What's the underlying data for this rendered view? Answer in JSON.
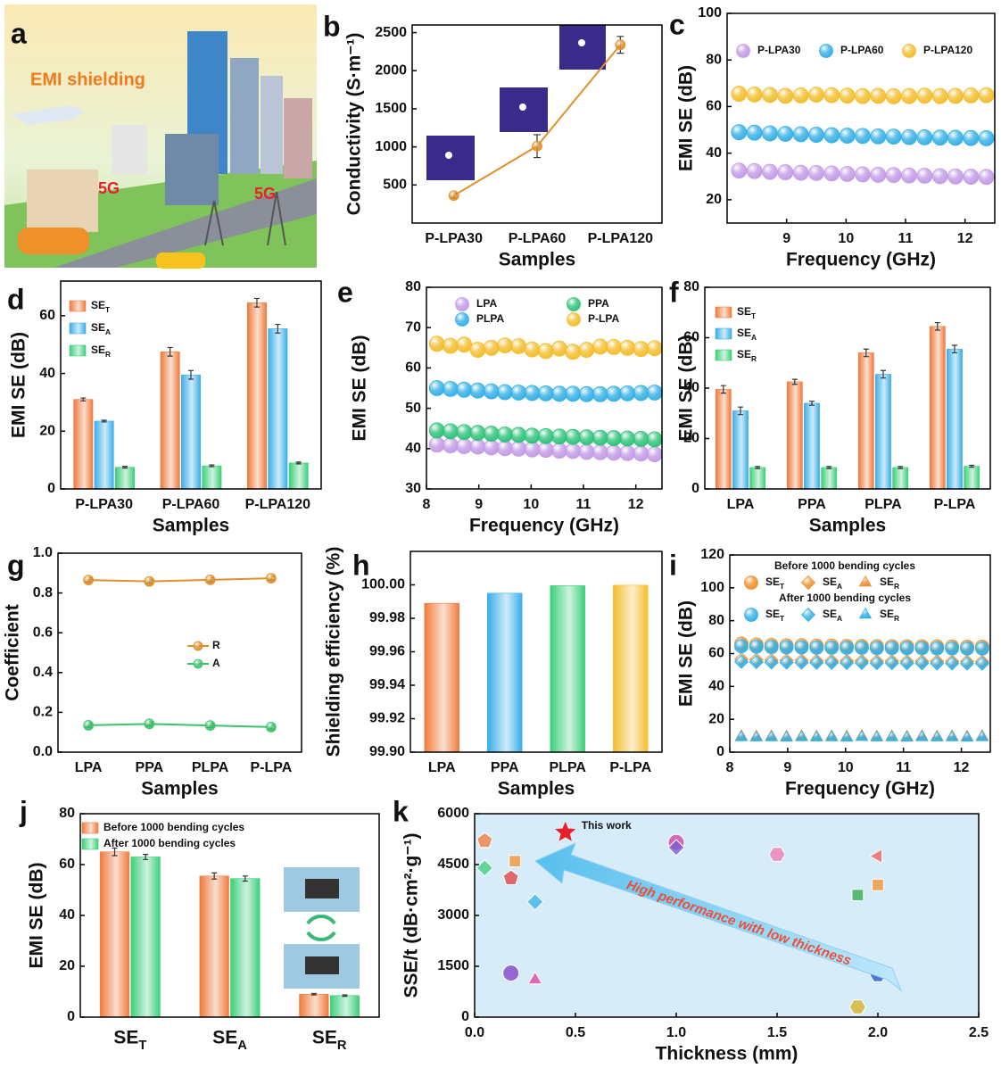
{
  "illustration": {
    "panel": "a",
    "texts": [
      "EMI shielding",
      "5G",
      "5G"
    ]
  },
  "chart_data": [
    {
      "panel": "b",
      "type": "line",
      "xlabel": "Samples",
      "ylabel": "Conductivity (S·m⁻¹)",
      "categories": [
        "P-LPA30",
        "P-LPA60",
        "P-LPA120"
      ],
      "series": [
        {
          "color": "#e0902a",
          "values": [
            360,
            1010,
            2340
          ],
          "errors": [
            30,
            150,
            110
          ]
        }
      ],
      "ylim": [
        0,
        2600
      ],
      "yticks": [
        500,
        1000,
        1500,
        2000,
        2500
      ]
    },
    {
      "panel": "c",
      "type": "scatter",
      "xlabel": "Frequency (GHz)",
      "ylabel": "EMI SE (dB)",
      "x": [
        8.2,
        8.46,
        8.72,
        8.98,
        9.24,
        9.5,
        9.76,
        10.02,
        10.28,
        10.54,
        10.8,
        11.06,
        11.32,
        11.58,
        11.84,
        12.1,
        12.36
      ],
      "series": [
        {
          "name": "P-LPA30",
          "color": "#c39be6",
          "values": [
            32.5,
            32.3,
            32,
            31.8,
            31.6,
            31.5,
            31.3,
            31.1,
            30.9,
            30.7,
            30.6,
            30.4,
            30.3,
            30.1,
            30,
            29.9,
            29.8
          ]
        },
        {
          "name": "P-LPA60",
          "color": "#35b0e6",
          "values": [
            49,
            48.8,
            48.5,
            48.3,
            48.1,
            47.9,
            47.7,
            47.5,
            47.4,
            47.2,
            47.1,
            46.9,
            46.8,
            46.7,
            46.6,
            46.5,
            46.4
          ]
        },
        {
          "name": "P-LPA120",
          "color": "#f3bd2c",
          "values": [
            65.5,
            65.2,
            65,
            64.6,
            64.8,
            65.1,
            64.9,
            64.7,
            64.5,
            64.6,
            64.4,
            64.5,
            64.7,
            64.5,
            64.6,
            64.8,
            64.9
          ]
        }
      ],
      "xlim": [
        8,
        12.5
      ],
      "xticks": [
        9,
        10,
        11,
        12
      ],
      "ylim": [
        10,
        100
      ],
      "yticks": [
        20,
        40,
        60,
        80,
        100
      ]
    },
    {
      "panel": "d",
      "type": "bar",
      "xlabel": "Samples",
      "ylabel": "EMI SE (dB)",
      "categories": [
        "P-LPA30",
        "P-LPA60",
        "P-LPA120"
      ],
      "series": [
        {
          "name": "SET",
          "color": "#f07a3c",
          "values": [
            31,
            47.5,
            64.5
          ],
          "errors": [
            0.5,
            1.5,
            1.5
          ]
        },
        {
          "name": "SEA",
          "color": "#3aaee8",
          "values": [
            23.5,
            39.5,
            55.5
          ],
          "errors": [
            0.3,
            1.5,
            1.5
          ]
        },
        {
          "name": "SER",
          "color": "#3ccf7a",
          "values": [
            7.5,
            8,
            9
          ],
          "errors": [
            0.3,
            0.3,
            0.3
          ]
        }
      ],
      "ylim": [
        0,
        72
      ],
      "yticks": [
        0,
        20,
        40,
        60
      ]
    },
    {
      "panel": "e",
      "type": "scatter",
      "xlabel": "Frequency (GHz)",
      "ylabel": "EMI SE (dB)",
      "x": [
        8.2,
        8.46,
        8.72,
        8.98,
        9.24,
        9.5,
        9.76,
        10.02,
        10.28,
        10.54,
        10.8,
        11.06,
        11.32,
        11.58,
        11.84,
        12.1,
        12.36
      ],
      "series": [
        {
          "name": "LPA",
          "color": "#c39be6",
          "values": [
            41,
            40.8,
            40.6,
            40.5,
            40.3,
            40.1,
            40,
            39.8,
            39.7,
            39.5,
            39.4,
            39.2,
            39.1,
            39,
            38.9,
            38.8,
            38.6
          ]
        },
        {
          "name": "PPA",
          "color": "#2fc27a",
          "values": [
            44.5,
            44.3,
            44.1,
            43.9,
            43.7,
            43.5,
            43.4,
            43.2,
            43.1,
            43,
            42.9,
            42.8,
            42.7,
            42.6,
            42.5,
            42.4,
            42.3
          ]
        },
        {
          "name": "PLPA",
          "color": "#35b0e6",
          "values": [
            55,
            54.8,
            54.6,
            54.4,
            54.2,
            54,
            53.9,
            53.8,
            53.7,
            53.6,
            53.6,
            53.5,
            53.5,
            53.6,
            53.7,
            53.8,
            53.9
          ]
        },
        {
          "name": "P-LPA",
          "color": "#f3bd2c",
          "values": [
            66,
            65.5,
            65.8,
            64.5,
            65,
            65.6,
            65.4,
            64.6,
            64.2,
            64.8,
            64,
            64.5,
            65.3,
            65.2,
            65,
            64.7,
            64.9
          ]
        }
      ],
      "xlim": [
        8,
        12.5
      ],
      "xticks": [
        8,
        9,
        10,
        11,
        12
      ],
      "ylim": [
        30,
        80
      ],
      "yticks": [
        30,
        40,
        50,
        60,
        70,
        80
      ]
    },
    {
      "panel": "f",
      "type": "bar",
      "xlabel": "Samples",
      "ylabel": "EMI SE (dB)",
      "categories": [
        "LPA",
        "PPA",
        "PLPA",
        "P-LPA"
      ],
      "series": [
        {
          "name": "SET",
          "color": "#f07a3c",
          "values": [
            39.5,
            42.5,
            54,
            64.5
          ],
          "errors": [
            1.5,
            1,
            1.5,
            1.5
          ]
        },
        {
          "name": "SEA",
          "color": "#3aaee8",
          "values": [
            31,
            34,
            45.5,
            55.5
          ],
          "errors": [
            1.5,
            0.8,
            1.5,
            1.5
          ]
        },
        {
          "name": "SER",
          "color": "#3ccf7a",
          "values": [
            8.5,
            8.5,
            8.5,
            9
          ],
          "errors": [
            0.4,
            0.4,
            0.4,
            0.4
          ]
        }
      ],
      "ylim": [
        0,
        80
      ],
      "yticks": [
        0,
        20,
        40,
        60,
        80
      ]
    },
    {
      "panel": "g",
      "type": "line",
      "xlabel": "Samples",
      "ylabel": "Coefficient",
      "categories": [
        "LPA",
        "PPA",
        "PLPA",
        "P-LPA"
      ],
      "series": [
        {
          "name": "R",
          "color": "#e0902a",
          "values": [
            0.865,
            0.858,
            0.866,
            0.874
          ],
          "errors": [
            0.01,
            0.01,
            0.01,
            0.01
          ]
        },
        {
          "name": "A",
          "color": "#3cc36a",
          "values": [
            0.135,
            0.142,
            0.134,
            0.126
          ],
          "errors": [
            0.01,
            0.01,
            0.01,
            0.01
          ]
        }
      ],
      "ylim": [
        0,
        1
      ],
      "yticks": [
        {
          "value": 0,
          "label": "0.0"
        },
        0.2,
        0.4,
        0.6,
        0.8,
        {
          "value": 1,
          "label": "1.0"
        }
      ]
    },
    {
      "panel": "h",
      "type": "bar",
      "xlabel": "Samples",
      "ylabel": "Shielding efficiency (%)",
      "categories": [
        "LPA",
        "PPA",
        "PLPA",
        "P-LPA"
      ],
      "values": [
        99.989,
        99.995,
        99.9995,
        99.9998
      ],
      "colors": [
        "#f07a3c",
        "#3aaee8",
        "#3ccf7a",
        "#f3bd2c"
      ],
      "ylim": [
        99.9,
        100.02
      ],
      "yticks": [
        {
          "value": 99.9,
          "label": "99.90"
        },
        99.92,
        99.94,
        99.96,
        99.98,
        {
          "value": 100,
          "label": "100.00"
        }
      ]
    },
    {
      "panel": "i",
      "type": "scatter",
      "xlabel": "Frequency (GHz)",
      "ylabel": "EMI SE (dB)",
      "legend_titles": [
        "Before 1000 bending cycles",
        "After 1000 bending cycles"
      ],
      "x": [
        8.2,
        8.46,
        8.72,
        8.98,
        9.24,
        9.5,
        9.76,
        10.02,
        10.28,
        10.54,
        10.8,
        11.06,
        11.32,
        11.58,
        11.84,
        12.1,
        12.36
      ],
      "series": [
        {
          "name": "SET",
          "marker": "circle",
          "color": "#f0902a",
          "values": [
            66,
            65.5,
            65.2,
            65,
            65,
            64.8,
            64.8,
            64.6,
            64.6,
            64.5,
            64.5,
            64.4,
            64.4,
            64.3,
            64.3,
            64.2,
            64.2
          ]
        },
        {
          "name": "SEA",
          "marker": "diamond",
          "color": "#f0902a",
          "values": [
            56.5,
            56.2,
            56,
            55.8,
            55.8,
            55.6,
            55.6,
            55.5,
            55.5,
            55.4,
            55.4,
            55.3,
            55.3,
            55.2,
            55.2,
            55.1,
            55.1
          ]
        },
        {
          "name": "SER",
          "marker": "triangle",
          "color": "#f0902a",
          "values": [
            9.5,
            9.3,
            9.4,
            9.2,
            9.5,
            9.3,
            9.4,
            9.2,
            9.6,
            9.3,
            9.4,
            9.2,
            9.5,
            9.3,
            9.4,
            9.2,
            9.5
          ]
        },
        {
          "name": "SET",
          "marker": "circle",
          "color": "#35b0e6",
          "values": [
            64.5,
            64.2,
            64,
            63.8,
            63.8,
            63.6,
            63.6,
            63.5,
            63.5,
            63.4,
            63.4,
            63.3,
            63.3,
            63.2,
            63.2,
            63.1,
            63.1
          ]
        },
        {
          "name": "SEA",
          "marker": "diamond",
          "color": "#35b0e6",
          "values": [
            55,
            54.8,
            54.6,
            54.5,
            54.5,
            54.4,
            54.4,
            54.3,
            54.3,
            54.2,
            54.2,
            54.1,
            54.1,
            54,
            54,
            53.9,
            53.9
          ]
        },
        {
          "name": "SER",
          "marker": "triangle",
          "color": "#35b0e6",
          "values": [
            9,
            8.8,
            8.9,
            8.7,
            9,
            8.8,
            8.9,
            8.7,
            9.1,
            8.8,
            8.9,
            8.7,
            9,
            8.8,
            8.9,
            8.7,
            9
          ]
        }
      ],
      "xlim": [
        8,
        12.5
      ],
      "xticks": [
        8,
        9,
        10,
        11,
        12
      ],
      "ylim": [
        0,
        120
      ],
      "yticks": [
        0,
        20,
        40,
        60,
        80,
        100,
        120
      ]
    },
    {
      "panel": "j",
      "type": "bar",
      "ylabel": "EMI SE (dB)",
      "categories": [
        "SET",
        "SEA",
        "SER"
      ],
      "series": [
        {
          "name": "Before 1000 bending cycles",
          "color": "#f07a3c",
          "values": [
            65,
            55.5,
            9
          ],
          "errors": [
            1.5,
            1.2,
            0.3
          ]
        },
        {
          "name": "After 1000 bending cycles",
          "color": "#3ccf7a",
          "values": [
            63,
            54.5,
            8.5
          ],
          "errors": [
            1,
            1,
            0.3
          ]
        }
      ],
      "ylim": [
        0,
        80
      ],
      "yticks": [
        0,
        20,
        40,
        60,
        80
      ]
    },
    {
      "panel": "k",
      "type": "scatter",
      "xlabel": "Thickness (mm)",
      "ylabel": "SSE/t (dB·cm²·g⁻¹)",
      "background": "#d6ecf8",
      "x": [
        0.05,
        0.05,
        0.2,
        0.18,
        0.3,
        0.18,
        0.3,
        1.0,
        1.0,
        1.5,
        2.0,
        2.0,
        1.9,
        2.0,
        1.9
      ],
      "values": [
        5200,
        4400,
        4600,
        4100,
        3400,
        1300,
        1100,
        5150,
        5000,
        4800,
        4750,
        3900,
        3600,
        1250,
        300
      ],
      "colors": [
        "#f07a3c",
        "#3ccf7a",
        "#f0902a",
        "#e03c3c",
        "#35b0e6",
        "#7a3cc8",
        "#e03ca0",
        "#d03ca0",
        "#7a5cc8",
        "#f07ab0",
        "#f05a5a",
        "#f0902a",
        "#2fa84a",
        "#2050c8",
        "#d8b020"
      ],
      "markers": [
        "pentagon",
        "diamond",
        "square",
        "pentagon",
        "diamond",
        "circle",
        "triangle",
        "circle",
        "diamond",
        "hexagon",
        "triangle-left",
        "square",
        "square",
        "hexagon",
        "hexagon"
      ],
      "highlight": {
        "x": 0.45,
        "y": 5450,
        "label": "This work",
        "color": "#e8202a"
      },
      "annotation": "High performance with low thickness",
      "xlim": [
        0,
        2.5
      ],
      "xticks": [
        {
          "value": 0,
          "label": "0.0"
        },
        0.5,
        {
          "value": 1,
          "label": "1.0"
        },
        1.5,
        {
          "value": 2,
          "label": "2.0"
        },
        2.5
      ],
      "ylim": [
        0,
        6000
      ],
      "yticks": [
        0,
        1500,
        3000,
        4500,
        6000
      ]
    }
  ]
}
